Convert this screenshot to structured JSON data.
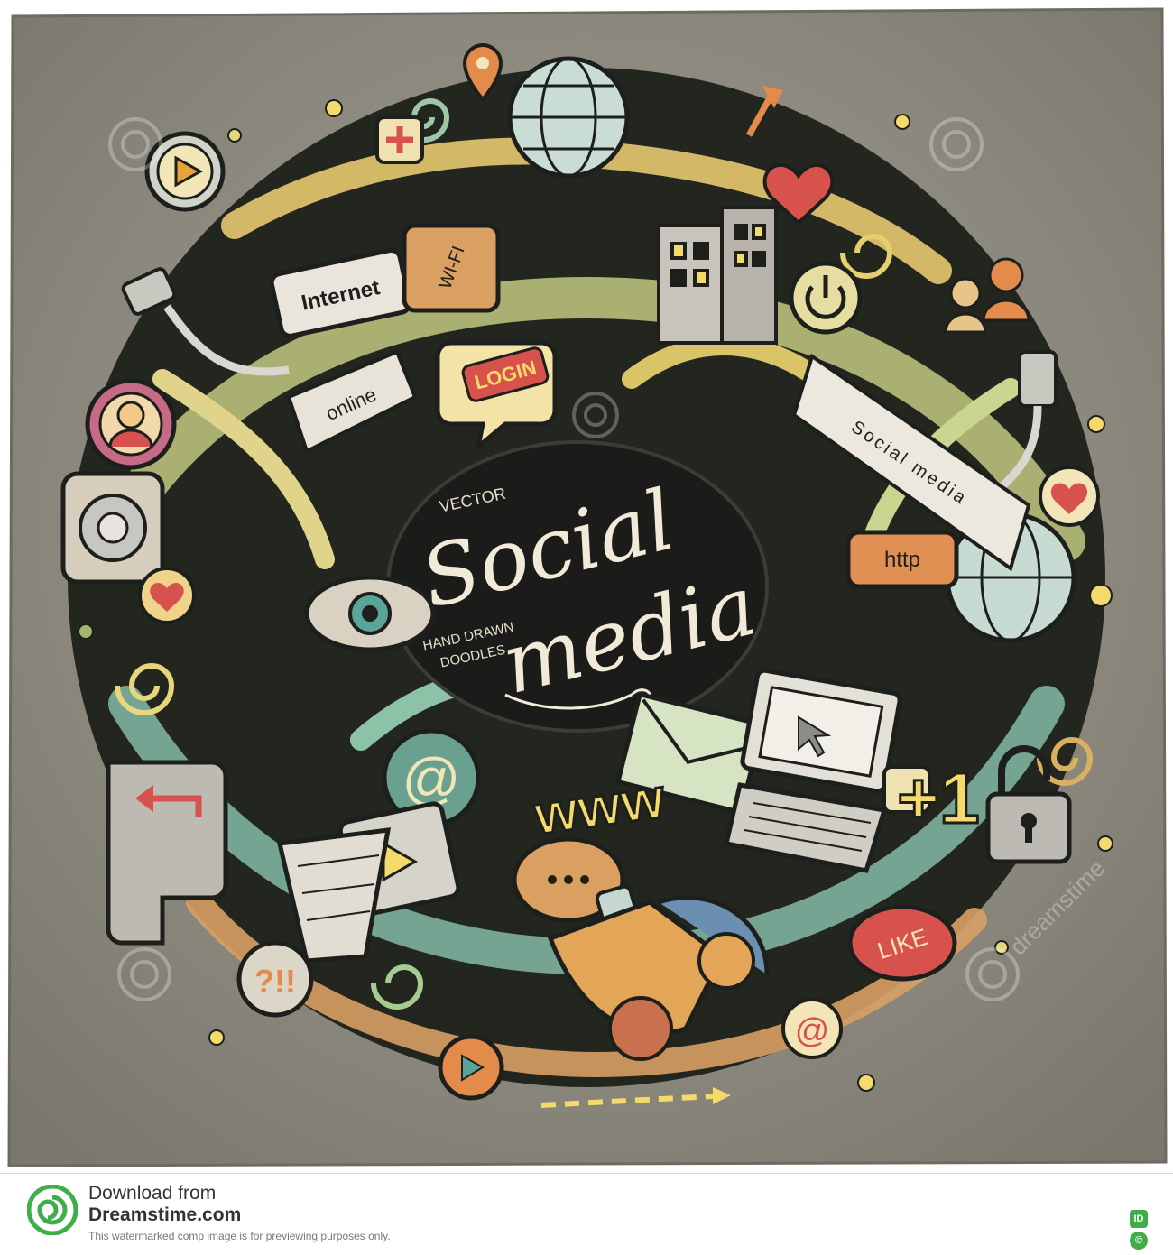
{
  "colors": {
    "background_paper": "#9a968c",
    "doodle_dark": "#1d1f1c",
    "accent_yellow": "#f4d96b",
    "accent_red": "#d7524d",
    "accent_teal": "#5aa59a",
    "accent_orange": "#e38b4a",
    "accent_green": "#9fb86a"
  },
  "title": {
    "pre": "VECTOR",
    "line1": "Social",
    "line2": "media",
    "sub1": "HAND DRAWN",
    "sub2": "DOODLES"
  },
  "labels": {
    "internet": "Internet",
    "wifi": "WI-FI",
    "login": "LOGIN",
    "online": "online",
    "social_media_banner": "Social media",
    "http": "http",
    "www": "www",
    "plus_one": "+1",
    "like": "LIKE",
    "at": "@",
    "question": "?!!"
  },
  "watermark_text": "dreamstime",
  "footer": {
    "download_from": "Download from",
    "site": "Dreamstime.com",
    "notice": "This watermarked comp image is for previewing purposes only.",
    "id_badge": "ID",
    "copyright_badge": "©"
  },
  "icons": [
    "globe-icon",
    "heart-icon",
    "plug-icon",
    "user-avatar-icon",
    "speaker-icon",
    "envelope-icon",
    "laptop-icon",
    "padlock-icon",
    "smartphone-icon",
    "play-button-icon",
    "map-pin-icon",
    "arrow-icon",
    "spiral-icon",
    "building-icon"
  ]
}
